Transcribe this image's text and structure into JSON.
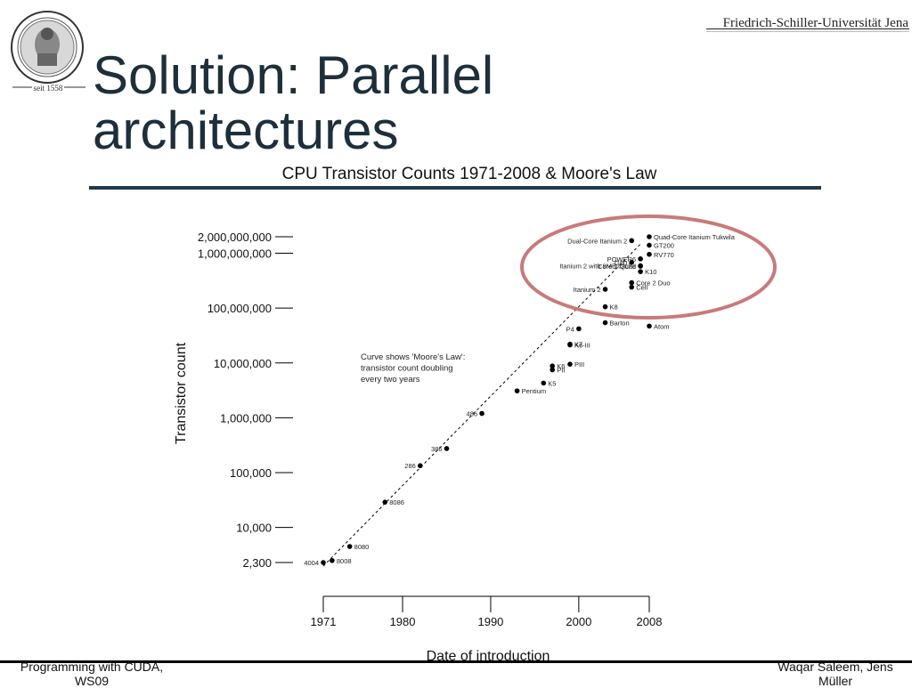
{
  "header": {
    "seal_caption": "seit 1558",
    "university": "Friedrich-Schiller-Universität Jena",
    "title": "Solution: Parallel architectures"
  },
  "footer": {
    "left": "Programming with CUDA, WS09",
    "right": "Waqar Saleem, Jens Müller"
  },
  "colors": {
    "title": "#1d2f3a",
    "rule": "#1f3a4a",
    "highlight_ellipse": "#c87a7a",
    "points": "#000000"
  },
  "chart_data": {
    "type": "scatter",
    "title": "CPU Transistor Counts 1971-2008 & Moore's Law",
    "xlabel": "Date of introduction",
    "ylabel": "Transistor count",
    "xlim": [
      1971,
      2008
    ],
    "ylim": [
      2300,
      2000000000
    ],
    "y_scale": "log",
    "x_ticks": [
      1971,
      1980,
      1990,
      2000,
      2008
    ],
    "y_ticks": [
      {
        "value": 2000000000,
        "label": "2,000,000,000"
      },
      {
        "value": 1000000000,
        "label": "1,000,000,000"
      },
      {
        "value": 100000000,
        "label": "100,000,000"
      },
      {
        "value": 10000000,
        "label": "10,000,000"
      },
      {
        "value": 1000000,
        "label": "1,000,000"
      },
      {
        "value": 100000,
        "label": "100,000"
      },
      {
        "value": 10000,
        "label": "10,000"
      },
      {
        "value": 2300,
        "label": "2,300"
      }
    ],
    "annotation": [
      "Curve shows 'Moore's Law':",
      "transistor count doubling",
      "every two years"
    ],
    "highlight": "ellipse around 2006-2008 multi-core processors",
    "trend_line": {
      "from": [
        1971,
        2300
      ],
      "to": [
        2008,
        1700000000
      ]
    },
    "points": [
      {
        "name": "4004",
        "x": 1971,
        "y": 2300,
        "label_side": "left"
      },
      {
        "name": "8008",
        "x": 1972,
        "y": 2500,
        "label_side": "right"
      },
      {
        "name": "8080",
        "x": 1974,
        "y": 4500,
        "label_side": "right"
      },
      {
        "name": "8086",
        "x": 1978,
        "y": 29000,
        "label_side": "right"
      },
      {
        "name": "286",
        "x": 1982,
        "y": 134000,
        "label_side": "left"
      },
      {
        "name": "386",
        "x": 1985,
        "y": 275000,
        "label_side": "left"
      },
      {
        "name": "486",
        "x": 1989,
        "y": 1200000,
        "label_side": "left"
      },
      {
        "name": "Pentium",
        "x": 1993,
        "y": 3100000,
        "label_side": "right"
      },
      {
        "name": "K5",
        "x": 1996,
        "y": 4300000,
        "label_side": "right"
      },
      {
        "name": "K6",
        "x": 1997,
        "y": 8800000,
        "label_side": "right"
      },
      {
        "name": "PII",
        "x": 1997,
        "y": 7500000,
        "label_side": "right"
      },
      {
        "name": "PIII",
        "x": 1999,
        "y": 9500000,
        "label_side": "right"
      },
      {
        "name": "K6-III",
        "x": 1999,
        "y": 21300000,
        "label_side": "right"
      },
      {
        "name": "K7",
        "x": 1999,
        "y": 22000000,
        "label_side": "right"
      },
      {
        "name": "P4",
        "x": 2000,
        "y": 42000000,
        "label_side": "left"
      },
      {
        "name": "Barton",
        "x": 2003,
        "y": 54300000,
        "label_side": "right"
      },
      {
        "name": "K8",
        "x": 2003,
        "y": 105900000,
        "label_side": "right"
      },
      {
        "name": "Atom",
        "x": 2008,
        "y": 47000000,
        "label_side": "right"
      },
      {
        "name": "Itanium 2",
        "x": 2003,
        "y": 220000000,
        "label_side": "left"
      },
      {
        "name": "Cell",
        "x": 2006,
        "y": 241000000,
        "label_side": "right"
      },
      {
        "name": "Core 2 Duo",
        "x": 2006,
        "y": 291000000,
        "label_side": "right"
      },
      {
        "name": "Core 2 Quad",
        "x": 2007,
        "y": 582000000,
        "label_side": "left"
      },
      {
        "name": "K10",
        "x": 2007,
        "y": 463000000,
        "label_side": "right"
      },
      {
        "name": "Itanium 2 with 9MB cache",
        "x": 2007,
        "y": 592000000,
        "label_side": "left"
      },
      {
        "name": "G80",
        "x": 2006,
        "y": 681000000,
        "label_side": "left"
      },
      {
        "name": "POWER6",
        "x": 2007,
        "y": 790000000,
        "label_side": "left"
      },
      {
        "name": "RV770",
        "x": 2008,
        "y": 956000000,
        "label_side": "right"
      },
      {
        "name": "GT200",
        "x": 2008,
        "y": 1400000000,
        "label_side": "right"
      },
      {
        "name": "Dual-Core Itanium 2",
        "x": 2006,
        "y": 1700000000,
        "label_side": "left"
      },
      {
        "name": "Quad-Core Itanium Tukwila",
        "x": 2008,
        "y": 2000000000,
        "label_side": "right"
      }
    ]
  }
}
